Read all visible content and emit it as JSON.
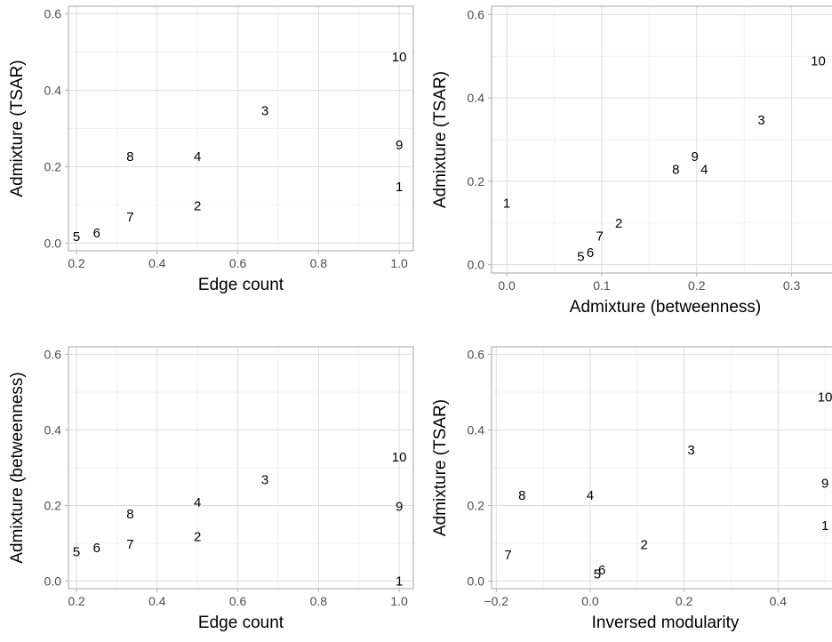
{
  "chart_data": [
    {
      "type": "scatter",
      "xlabel": "Edge count",
      "ylabel": "Admixture (TSAR)",
      "xlim": [
        0.18,
        1.035
      ],
      "ylim": [
        -0.02,
        0.62
      ],
      "xticks": [
        0.2,
        0.4,
        0.6,
        0.8,
        1.0
      ],
      "xtick_labels": [
        "0.2",
        "0.4",
        "0.6",
        "0.8",
        "1.0"
      ],
      "yticks": [
        0.0,
        0.2,
        0.4,
        0.6
      ],
      "ytick_labels": [
        "0.0",
        "0.2",
        "0.4",
        "0.6"
      ],
      "grid": true,
      "points": [
        {
          "label": "1",
          "x": 1.0,
          "y": 0.147
        },
        {
          "label": "2",
          "x": 0.5,
          "y": 0.097
        },
        {
          "label": "3",
          "x": 0.667,
          "y": 0.347
        },
        {
          "label": "4",
          "x": 0.5,
          "y": 0.227
        },
        {
          "label": "5",
          "x": 0.2,
          "y": 0.017
        },
        {
          "label": "6",
          "x": 0.25,
          "y": 0.027
        },
        {
          "label": "7",
          "x": 0.333,
          "y": 0.069
        },
        {
          "label": "8",
          "x": 0.333,
          "y": 0.227
        },
        {
          "label": "9",
          "x": 1.0,
          "y": 0.257
        },
        {
          "label": "10",
          "x": 1.0,
          "y": 0.487
        }
      ]
    },
    {
      "type": "scatter",
      "xlabel": "Admixture (betweenness)",
      "ylabel": "Admixture (TSAR)",
      "xlim": [
        -0.016,
        0.35
      ],
      "ylim": [
        -0.02,
        0.62
      ],
      "xticks": [
        0.0,
        0.1,
        0.2,
        0.3
      ],
      "xtick_labels": [
        "0.0",
        "0.1",
        "0.2",
        "0.3"
      ],
      "yticks": [
        0.0,
        0.2,
        0.4,
        0.6
      ],
      "ytick_labels": [
        "0.0",
        "0.2",
        "0.4",
        "0.6"
      ],
      "grid": true,
      "points": [
        {
          "label": "1",
          "x": 0.0,
          "y": 0.147
        },
        {
          "label": "2",
          "x": 0.118,
          "y": 0.099
        },
        {
          "label": "3",
          "x": 0.268,
          "y": 0.347
        },
        {
          "label": "4",
          "x": 0.208,
          "y": 0.229
        },
        {
          "label": "5",
          "x": 0.078,
          "y": 0.019
        },
        {
          "label": "6",
          "x": 0.088,
          "y": 0.029
        },
        {
          "label": "7",
          "x": 0.098,
          "y": 0.069
        },
        {
          "label": "8",
          "x": 0.178,
          "y": 0.229
        },
        {
          "label": "9",
          "x": 0.198,
          "y": 0.259
        },
        {
          "label": "10",
          "x": 0.328,
          "y": 0.489
        }
      ]
    },
    {
      "type": "scatter",
      "xlabel": "Edge count",
      "ylabel": "Admixture (betweenness)",
      "xlim": [
        0.18,
        1.035
      ],
      "ylim": [
        -0.02,
        0.62
      ],
      "xticks": [
        0.2,
        0.4,
        0.6,
        0.8,
        1.0
      ],
      "xtick_labels": [
        "0.2",
        "0.4",
        "0.6",
        "0.8",
        "1.0"
      ],
      "yticks": [
        0.0,
        0.2,
        0.4,
        0.6
      ],
      "ytick_labels": [
        "0.0",
        "0.2",
        "0.4",
        "0.6"
      ],
      "grid": true,
      "points": [
        {
          "label": "1",
          "x": 1.0,
          "y": 0.0
        },
        {
          "label": "2",
          "x": 0.5,
          "y": 0.118
        },
        {
          "label": "3",
          "x": 0.667,
          "y": 0.268
        },
        {
          "label": "4",
          "x": 0.5,
          "y": 0.208
        },
        {
          "label": "5",
          "x": 0.2,
          "y": 0.078
        },
        {
          "label": "6",
          "x": 0.25,
          "y": 0.088
        },
        {
          "label": "7",
          "x": 0.333,
          "y": 0.098
        },
        {
          "label": "8",
          "x": 0.333,
          "y": 0.178
        },
        {
          "label": "9",
          "x": 1.0,
          "y": 0.198
        },
        {
          "label": "10",
          "x": 1.0,
          "y": 0.328
        }
      ]
    },
    {
      "type": "scatter",
      "xlabel": "Inversed modularity",
      "ylabel": "Admixture (TSAR)",
      "xlim": [
        -0.21,
        0.53
      ],
      "ylim": [
        -0.02,
        0.62
      ],
      "xticks": [
        -0.2,
        0.0,
        0.2,
        0.4
      ],
      "xtick_labels": [
        "−0.2",
        "0.0",
        "0.2",
        "0.4"
      ],
      "yticks": [
        0.0,
        0.2,
        0.4,
        0.6
      ],
      "ytick_labels": [
        "0.0",
        "0.2",
        "0.4",
        "0.6"
      ],
      "grid": true,
      "points": [
        {
          "label": "1",
          "x": 0.5,
          "y": 0.147
        },
        {
          "label": "2",
          "x": 0.115,
          "y": 0.097
        },
        {
          "label": "3",
          "x": 0.215,
          "y": 0.347
        },
        {
          "label": "4",
          "x": 0.0,
          "y": 0.227
        },
        {
          "label": "5",
          "x": 0.015,
          "y": 0.019
        },
        {
          "label": "6",
          "x": 0.025,
          "y": 0.029
        },
        {
          "label": "7",
          "x": -0.175,
          "y": 0.069
        },
        {
          "label": "8",
          "x": -0.145,
          "y": 0.227
        },
        {
          "label": "9",
          "x": 0.5,
          "y": 0.259
        },
        {
          "label": "10",
          "x": 0.5,
          "y": 0.487
        }
      ]
    }
  ]
}
